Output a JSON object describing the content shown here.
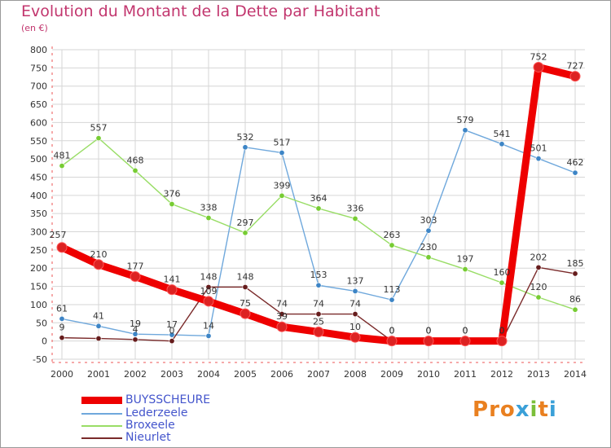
{
  "title": "Evolution du Montant de la Dette par Habitant",
  "subtitle": "(en €)",
  "logo": {
    "text": "Proxiti",
    "colors": [
      "#e98020",
      "#e98020",
      "#e98020",
      "#3aa0d8",
      "#7bbf3a",
      "#e98020",
      "#3aa0d8"
    ]
  },
  "chart_data": {
    "type": "line",
    "x": [
      2000,
      2001,
      2002,
      2003,
      2004,
      2005,
      2006,
      2007,
      2008,
      2009,
      2010,
      2011,
      2012,
      2013,
      2014
    ],
    "xlabel": "",
    "ylabel": "",
    "ylim": [
      -50,
      800
    ],
    "yticks": [
      -50,
      0,
      50,
      100,
      150,
      200,
      250,
      300,
      350,
      400,
      450,
      500,
      550,
      600,
      650,
      700,
      750,
      800
    ],
    "grid": true,
    "legend_position": "bottom-left",
    "series": [
      {
        "name": "BUYSSCHEURE",
        "color": "#ee0000",
        "marker": "#dd2222",
        "width": "thick",
        "values": [
          257,
          210,
          177,
          141,
          109,
          75,
          39,
          25,
          10,
          0,
          0,
          0,
          0,
          752,
          727
        ],
        "labels": [
          "257",
          "210",
          "177",
          "141",
          "109",
          "75",
          "39",
          "25",
          "10",
          "0",
          "0",
          "0",
          "0",
          "752",
          "727"
        ]
      },
      {
        "name": "Lederzeele",
        "color": "#6fa8dc",
        "marker": "#3d85c6",
        "width": "thin",
        "values": [
          61,
          41,
          19,
          17,
          14,
          532,
          517,
          153,
          137,
          113,
          303,
          579,
          541,
          501,
          462
        ],
        "labels": [
          "61",
          "41",
          "19",
          "17",
          "14",
          "532",
          "517",
          "153",
          "137",
          "113",
          "303",
          "579",
          "541",
          "501",
          "462"
        ]
      },
      {
        "name": "Broxeele",
        "color": "#99dd66",
        "marker": "#77cc33",
        "width": "thin",
        "values": [
          481,
          557,
          468,
          376,
          338,
          297,
          399,
          364,
          336,
          263,
          230,
          197,
          160,
          120,
          86
        ],
        "labels": [
          "481",
          "557",
          "468",
          "376",
          "338",
          "297",
          "399",
          "364",
          "336",
          "263",
          "230",
          "197",
          "160",
          "120",
          "86"
        ]
      },
      {
        "name": "Nieurlet",
        "color": "#7a2a2a",
        "marker": "#661c1c",
        "width": "thin",
        "values": [
          9,
          7,
          4,
          0,
          148,
          148,
          74,
          74,
          74,
          0,
          0,
          0,
          0,
          202,
          185
        ],
        "labels": [
          "9",
          "",
          "4",
          "0",
          "148",
          "148",
          "74",
          "74",
          "74",
          "0",
          "0",
          "0",
          "0",
          "202",
          "185"
        ]
      }
    ]
  }
}
